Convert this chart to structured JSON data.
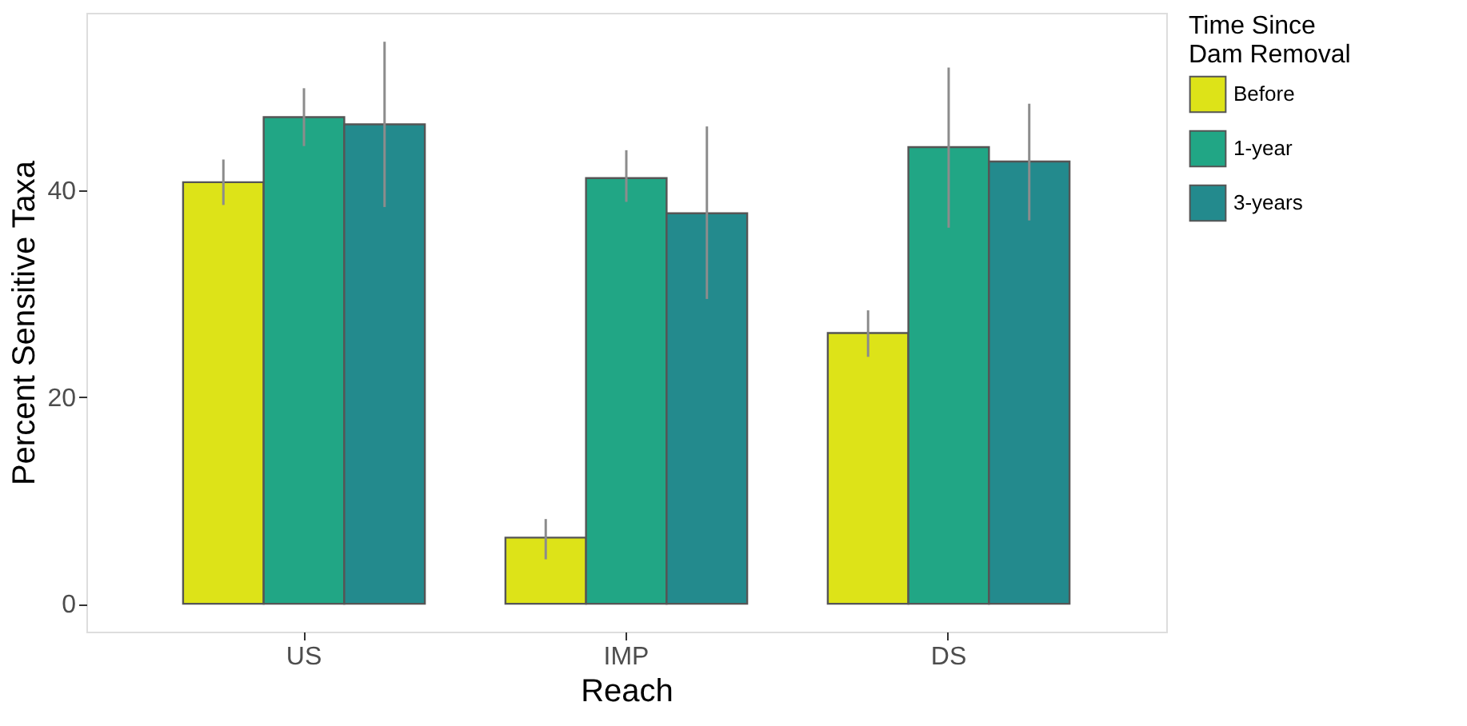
{
  "chart_data": {
    "type": "bar",
    "xlabel": "Reach",
    "ylabel": "Percent Sensitive Taxa",
    "legend_title": "Time Since\nDam Removal",
    "categories": [
      "US",
      "IMP",
      "DS"
    ],
    "series": [
      {
        "name": "Before",
        "color": "#dde318",
        "values": [
          40.8,
          6.4,
          26.2
        ],
        "errors": [
          [
            38.6,
            43.0
          ],
          [
            4.3,
            8.2
          ],
          [
            23.9,
            28.4
          ]
        ]
      },
      {
        "name": "1-year",
        "color": "#21a685",
        "values": [
          47.1,
          41.2,
          44.2
        ],
        "errors": [
          [
            44.3,
            49.9
          ],
          [
            38.9,
            43.9
          ],
          [
            36.4,
            51.9
          ]
        ]
      },
      {
        "name": "3-years",
        "color": "#238a8d",
        "values": [
          46.4,
          37.8,
          42.8
        ],
        "errors": [
          [
            38.4,
            54.4
          ],
          [
            29.5,
            46.2
          ],
          [
            37.1,
            48.4
          ]
        ]
      }
    ],
    "ylim": [
      -2.7,
      57.2
    ],
    "yticks": [
      0,
      20,
      40
    ],
    "grid": false,
    "legend": "right"
  }
}
